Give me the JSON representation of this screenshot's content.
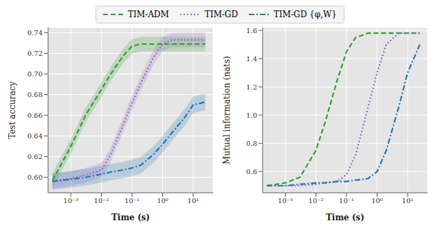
{
  "chart_data": [
    {
      "type": "line",
      "legend": "upper center",
      "grid": true,
      "log": "x",
      "xlabel": "Time (s)",
      "ylabel": "Test accuracy",
      "xlim": [
        0.00018,
        45
      ],
      "xticks": [
        {
          "value": 0.001,
          "label": "10⁻³"
        },
        {
          "value": 0.01,
          "label": "10⁻²"
        },
        {
          "value": 0.1,
          "label": "10⁻¹"
        },
        {
          "value": 1,
          "label": "10⁰"
        },
        {
          "value": 10,
          "label": "10¹"
        }
      ],
      "ylim": [
        0.585,
        0.745
      ],
      "yticks": [
        {
          "value": 0.6,
          "label": "0.60"
        },
        {
          "value": 0.62,
          "label": "0.62"
        },
        {
          "value": 0.64,
          "label": "0.64"
        },
        {
          "value": 0.66,
          "label": "0.66"
        },
        {
          "value": 0.68,
          "label": "0.68"
        },
        {
          "value": 0.7,
          "label": "0.70"
        },
        {
          "value": 0.72,
          "label": "0.72"
        },
        {
          "value": 0.74,
          "label": "0.74"
        }
      ],
      "x": [
        0.00025,
        0.001,
        0.003,
        0.01,
        0.02,
        0.05,
        0.1,
        0.2,
        0.5,
        1,
        2,
        5,
        10,
        25
      ],
      "series": [
        {
          "name": "TIM-ADM",
          "color": "#2ca02c",
          "line_style": "dashed",
          "values": [
            0.597,
            0.63,
            0.66,
            0.685,
            0.7,
            0.717,
            0.727,
            0.729,
            0.729,
            0.729,
            0.729,
            0.729,
            0.729,
            0.729
          ],
          "error": [
            0.007,
            0.007,
            0.007,
            0.007,
            0.007,
            0.007,
            0.007,
            0.007,
            0.007,
            0.007,
            0.007,
            0.007,
            0.007,
            0.007
          ]
        },
        {
          "name": "TIM-GD",
          "color": "#9467bd",
          "line_style": "dotted",
          "values": [
            0.596,
            0.599,
            0.602,
            0.607,
            0.622,
            0.65,
            0.672,
            0.692,
            0.716,
            0.729,
            0.733,
            0.733,
            0.733,
            0.733
          ],
          "error": [
            0.007,
            0.007,
            0.007,
            0.007,
            0.007,
            0.007,
            0.007,
            0.007,
            0.007,
            0.007,
            0.007,
            0.007,
            0.007,
            0.007
          ]
        },
        {
          "name": "TIM-GD {φ,W}",
          "color": "#1f77b4",
          "line_style": "dashdot",
          "values": [
            0.596,
            0.598,
            0.6,
            0.603,
            0.605,
            0.607,
            0.609,
            0.612,
            0.622,
            0.632,
            0.643,
            0.657,
            0.67,
            0.673
          ],
          "error": [
            0.008,
            0.008,
            0.008,
            0.008,
            0.008,
            0.008,
            0.008,
            0.008,
            0.008,
            0.008,
            0.008,
            0.008,
            0.008,
            0.008
          ]
        }
      ]
    },
    {
      "type": "line",
      "grid": true,
      "log": "x",
      "xlabel": "Time (s)",
      "ylabel": "Mutual information (nats)",
      "xlim": [
        0.00018,
        45
      ],
      "xticks": [
        {
          "value": 0.001,
          "label": "10⁻³"
        },
        {
          "value": 0.01,
          "label": "10⁻²"
        },
        {
          "value": 0.1,
          "label": "10⁻¹"
        },
        {
          "value": 1,
          "label": "10⁰"
        },
        {
          "value": 10,
          "label": "10¹"
        }
      ],
      "ylim": [
        0.45,
        1.62
      ],
      "yticks": [
        {
          "value": 0.6,
          "label": "0.6"
        },
        {
          "value": 0.8,
          "label": "0.8"
        },
        {
          "value": 1.0,
          "label": "1.0"
        },
        {
          "value": 1.2,
          "label": "1.2"
        },
        {
          "value": 1.4,
          "label": "1.4"
        },
        {
          "value": 1.6,
          "label": "1.6"
        }
      ],
      "x": [
        0.00025,
        0.001,
        0.003,
        0.01,
        0.02,
        0.05,
        0.1,
        0.2,
        0.5,
        1,
        2,
        5,
        10,
        25
      ],
      "series": [
        {
          "name": "TIM-ADM",
          "color": "#2ca02c",
          "line_style": "dashed",
          "values": [
            0.5,
            0.52,
            0.56,
            0.75,
            0.95,
            1.25,
            1.45,
            1.55,
            1.58,
            1.58,
            1.58,
            1.58,
            1.58,
            1.58
          ]
        },
        {
          "name": "TIM-GD",
          "color": "#9467bd",
          "line_style": "dotted",
          "values": [
            0.5,
            0.5,
            0.5,
            0.51,
            0.52,
            0.53,
            0.58,
            0.72,
            1.05,
            1.3,
            1.5,
            1.58,
            1.58,
            1.58
          ]
        },
        {
          "name": "TIM-GD {φ,W}",
          "color": "#1f77b4",
          "line_style": "dashdot",
          "values": [
            0.5,
            0.5,
            0.51,
            0.52,
            0.52,
            0.53,
            0.53,
            0.54,
            0.55,
            0.6,
            0.75,
            1.05,
            1.3,
            1.5
          ]
        }
      ]
    }
  ]
}
